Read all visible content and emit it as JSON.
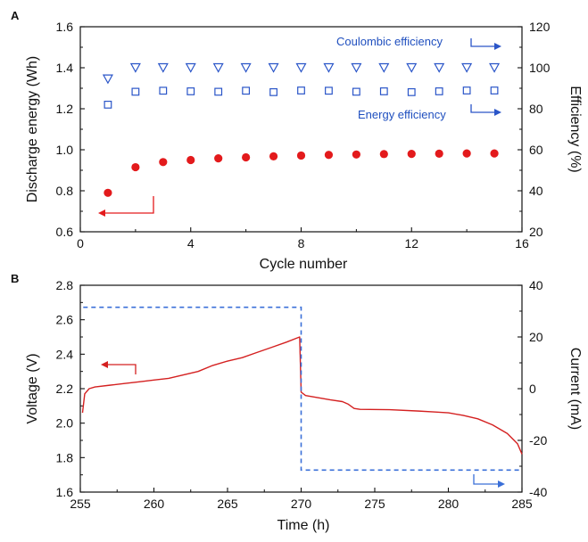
{
  "colors": {
    "discharge": "#e31a1c",
    "efficiency": "#2a55c8",
    "voltage": "#d42020",
    "current": "#3a6fd8",
    "axis": "#111111"
  },
  "chart_data": [
    {
      "type": "scatter",
      "panel_label": "A",
      "xlabel": "Cycle number",
      "ylabel": "Discharge energy (Wh)",
      "y2label": "Efficiency (%)",
      "xlim": [
        0,
        16
      ],
      "ylim": [
        0.6,
        1.6
      ],
      "y2lim": [
        20,
        120
      ],
      "xticks": [
        "0",
        "4",
        "8",
        "12",
        "16"
      ],
      "yticks": [
        "0.6",
        "0.8",
        "1.0",
        "1.2",
        "1.4",
        "1.6"
      ],
      "y2ticks": [
        "20",
        "40",
        "60",
        "80",
        "100",
        "120"
      ],
      "annotations": [
        "Coulombic efficiency",
        "Energy efficiency"
      ],
      "series": [
        {
          "axis": "left",
          "marker": "filled-circle",
          "x": [
            1,
            2,
            3,
            4,
            5,
            6,
            7,
            8,
            9,
            10,
            11,
            12,
            13,
            14,
            15
          ],
          "values": [
            0.79,
            0.915,
            0.94,
            0.95,
            0.958,
            0.963,
            0.968,
            0.972,
            0.975,
            0.977,
            0.979,
            0.98,
            0.981,
            0.982,
            0.982
          ]
        },
        {
          "name": "Coulombic efficiency",
          "axis": "right",
          "marker": "open-triangle-down",
          "x": [
            1,
            2,
            3,
            4,
            5,
            6,
            7,
            8,
            9,
            10,
            11,
            12,
            13,
            14,
            15
          ],
          "values": [
            94.5,
            100,
            100,
            100,
            100,
            100,
            100,
            100,
            100,
            100,
            100,
            100,
            100,
            100,
            100
          ]
        },
        {
          "name": "Energy efficiency",
          "axis": "right",
          "marker": "open-square",
          "x": [
            1,
            2,
            3,
            4,
            5,
            6,
            7,
            8,
            9,
            10,
            11,
            12,
            13,
            14,
            15
          ],
          "values": [
            82,
            88.3,
            88.8,
            88.5,
            88.3,
            88.8,
            88.1,
            88.9,
            88.8,
            88.3,
            88.5,
            88.1,
            88.5,
            88.9,
            88.9
          ]
        }
      ]
    },
    {
      "type": "line",
      "panel_label": "B",
      "xlabel": "Time (h)",
      "ylabel": "Voltage (V)",
      "y2label": "Current (mA)",
      "xlim": [
        255,
        285
      ],
      "ylim": [
        1.6,
        2.8
      ],
      "y2lim": [
        -40,
        40
      ],
      "xticks": [
        "255",
        "260",
        "265",
        "270",
        "275",
        "280",
        "285"
      ],
      "yticks": [
        "1.6",
        "1.8",
        "2.0",
        "2.2",
        "2.4",
        "2.6",
        "2.8"
      ],
      "y2ticks": [
        "-40",
        "-20",
        "0",
        "20",
        "40"
      ],
      "series": [
        {
          "axis": "left",
          "style": "solid",
          "x": [
            255.15,
            255.3,
            255.6,
            256,
            257,
            258,
            259,
            260,
            261,
            262,
            263,
            264,
            265,
            266,
            267,
            268,
            269,
            269.9,
            270,
            270.3,
            271,
            272,
            272.8,
            273.2,
            273.6,
            274,
            276,
            278,
            279,
            280,
            281,
            282,
            283,
            284,
            284.7,
            285
          ],
          "values": [
            2.06,
            2.17,
            2.2,
            2.21,
            2.22,
            2.23,
            2.24,
            2.25,
            2.26,
            2.28,
            2.3,
            2.335,
            2.36,
            2.38,
            2.41,
            2.44,
            2.47,
            2.5,
            2.18,
            2.16,
            2.15,
            2.135,
            2.125,
            2.11,
            2.085,
            2.08,
            2.078,
            2.07,
            2.065,
            2.06,
            2.045,
            2.025,
            1.99,
            1.94,
            1.88,
            1.82
          ]
        },
        {
          "axis": "right",
          "style": "dashed",
          "x": [
            255.2,
            270,
            270,
            285
          ],
          "values": [
            31.5,
            31.5,
            -31.5,
            -31.5
          ]
        }
      ]
    }
  ]
}
